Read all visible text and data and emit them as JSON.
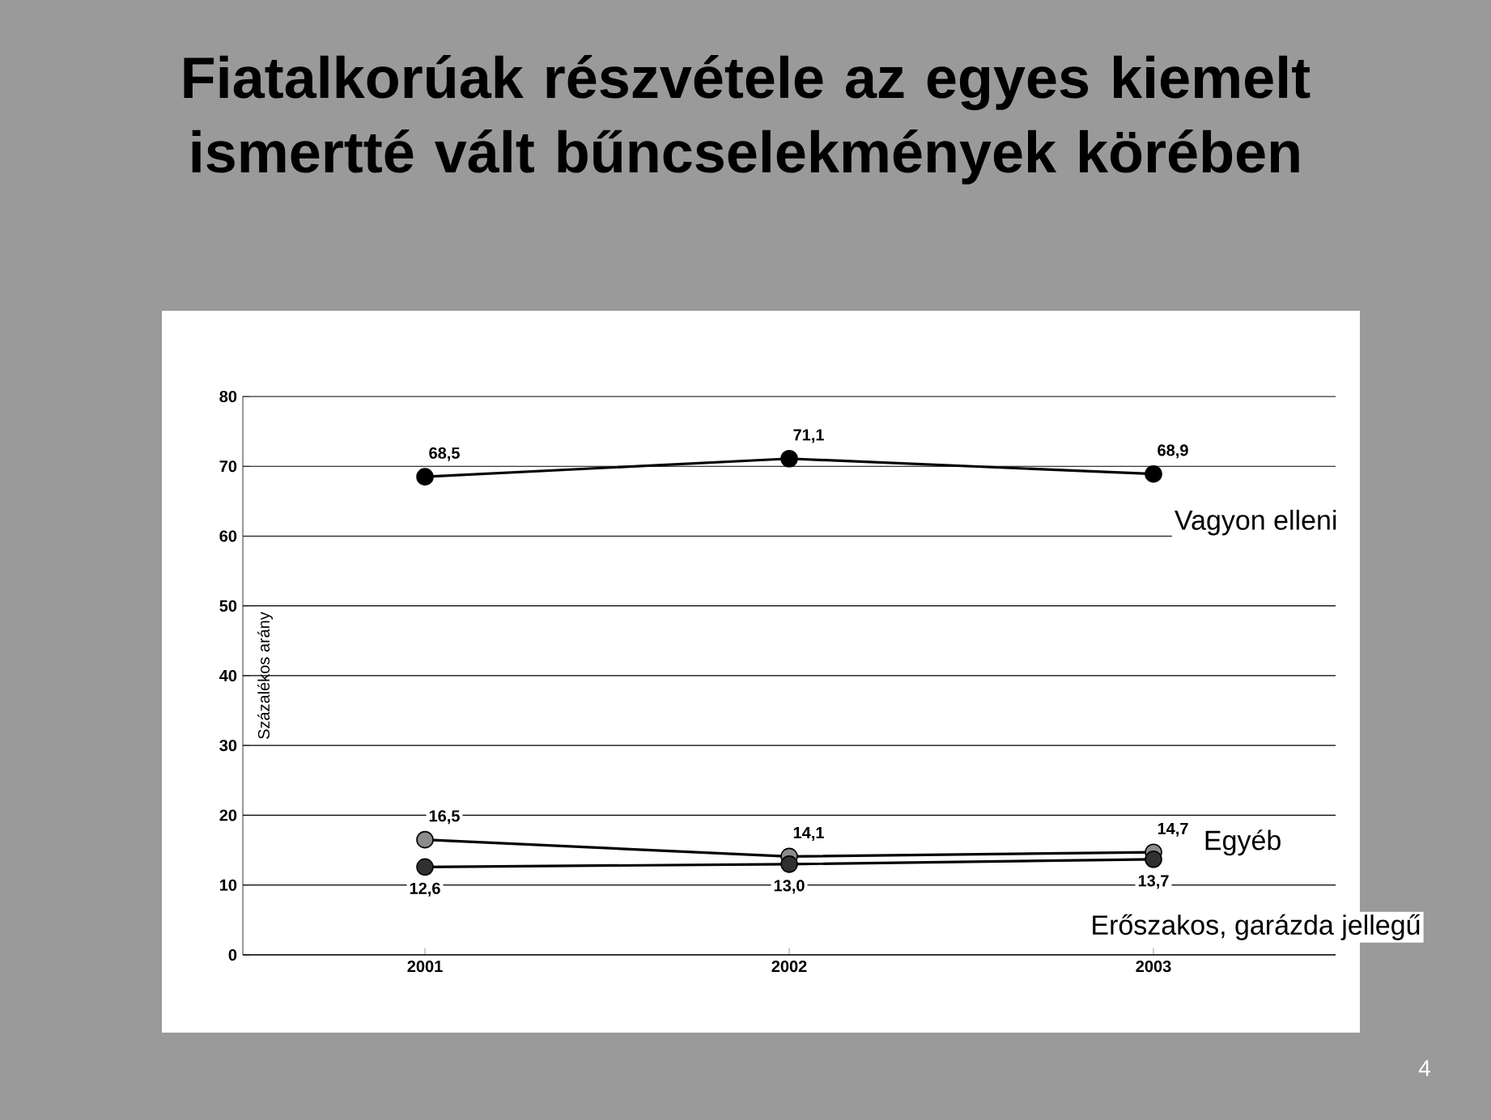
{
  "chart_data": {
    "type": "line",
    "title": "Fiatalkorúak részvétele az egyes kiemelt ismertté vált bűncselekmények körében",
    "ylabel": "Százalékos arány",
    "categories": [
      "2001",
      "2002",
      "2003"
    ],
    "series": [
      {
        "name": "Vagyon elleni",
        "color": "#000000",
        "values": [
          68.5,
          71.1,
          68.9
        ],
        "value_labels": [
          "68,5",
          "71,1",
          "68,9"
        ]
      },
      {
        "name": "Egyéb",
        "color": "#8c8c8c",
        "values": [
          16.5,
          14.1,
          14.7
        ],
        "value_labels": [
          "16,5",
          "14,1",
          "14,7"
        ]
      },
      {
        "name": "Erőszakos, garázda jellegű",
        "color": "#303030",
        "values": [
          12.6,
          13.0,
          13.7
        ],
        "value_labels": [
          "12,6",
          "13,0",
          "13,7"
        ]
      }
    ],
    "ylim": [
      0,
      80
    ],
    "yticks": [
      0,
      10,
      20,
      30,
      40,
      50,
      60,
      70,
      80
    ],
    "grid": "y",
    "marker": "circle",
    "line_style": "solid",
    "annotations": [
      "4"
    ]
  }
}
